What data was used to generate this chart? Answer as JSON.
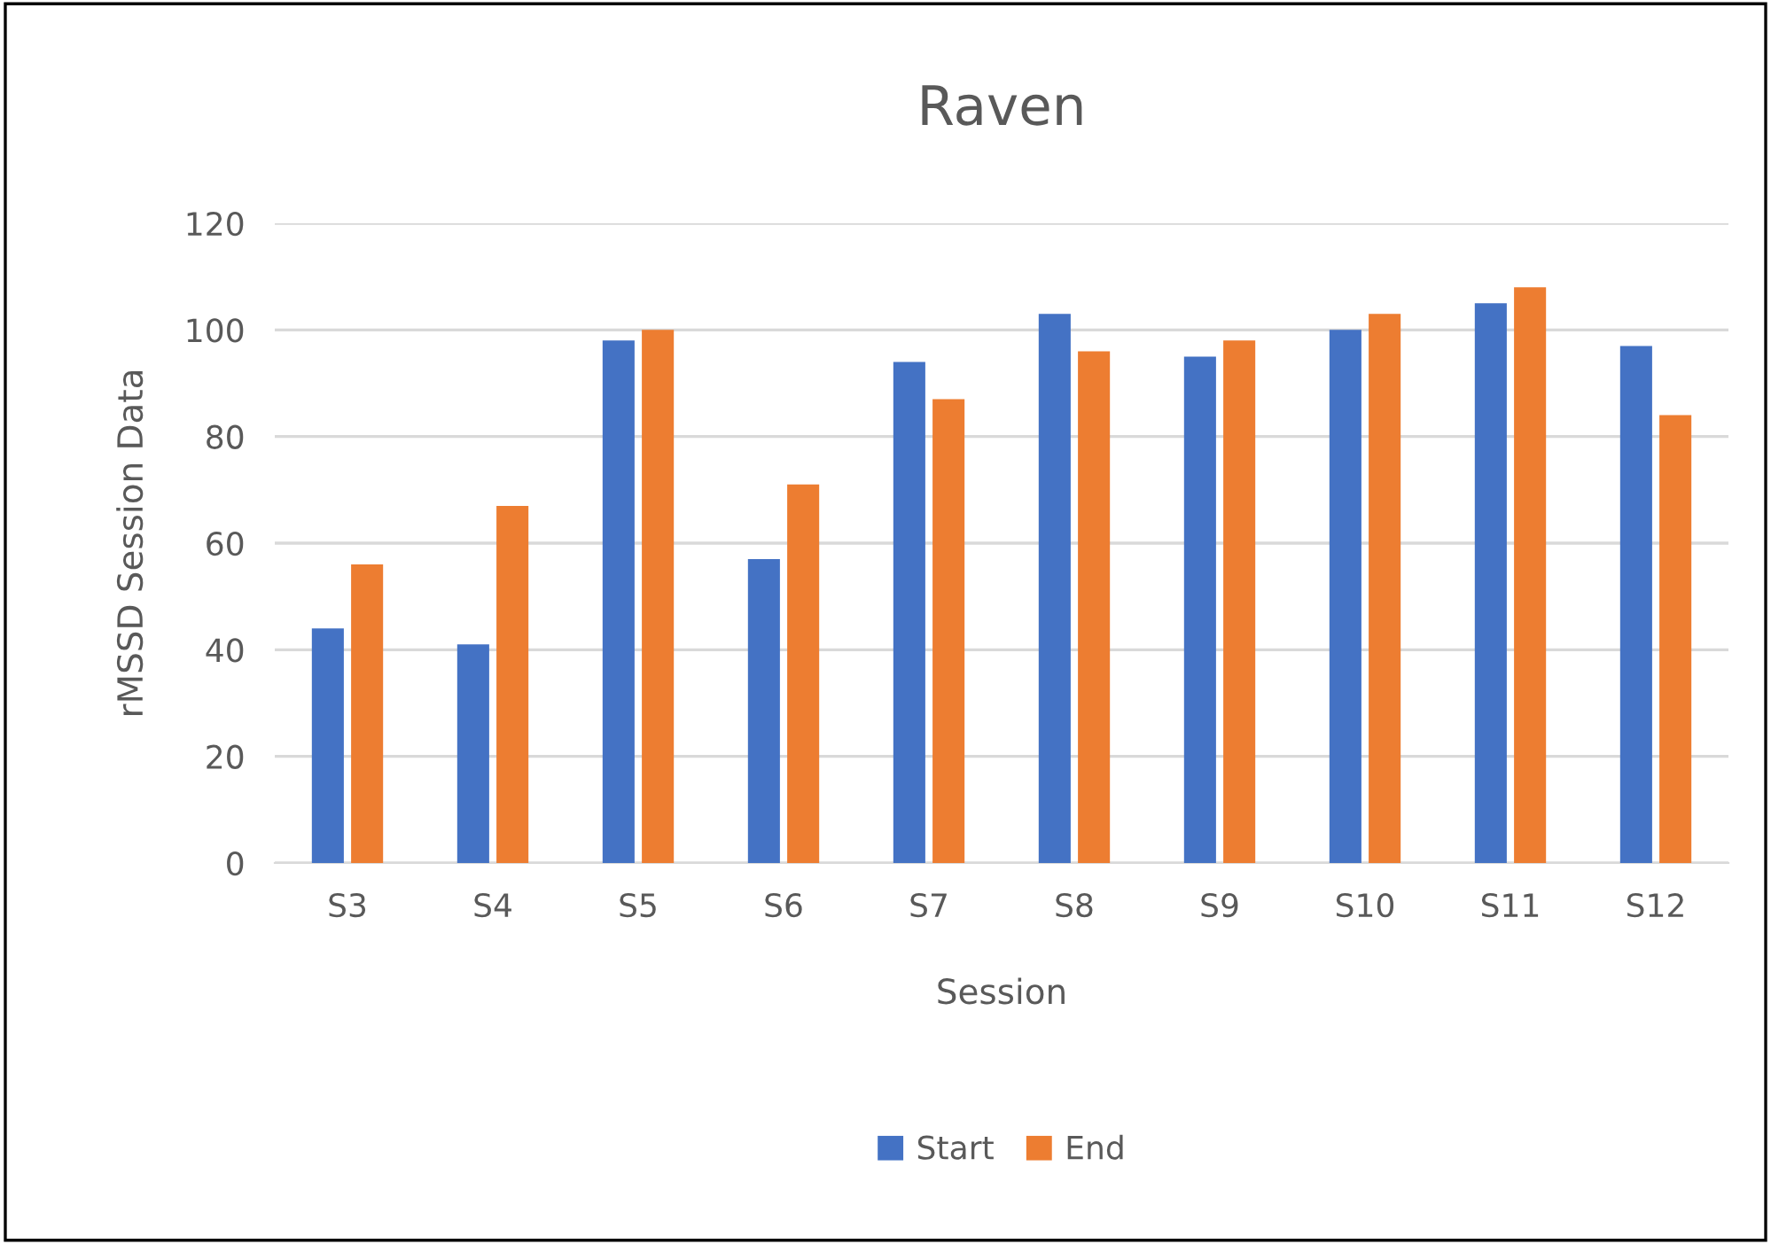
{
  "chart_data": {
    "type": "bar",
    "title": "Raven",
    "xlabel": "Session",
    "ylabel": "rMSSD Session Data",
    "categories": [
      "S3",
      "S4",
      "S5",
      "S6",
      "S7",
      "S8",
      "S9",
      "S10",
      "S11",
      "S12"
    ],
    "series": [
      {
        "name": "Start",
        "color": "#4472c4",
        "values": [
          44,
          41,
          98,
          57,
          94,
          103,
          95,
          100,
          105,
          97
        ]
      },
      {
        "name": "End",
        "color": "#ed7d31",
        "values": [
          56,
          67,
          100,
          71,
          87,
          96,
          98,
          103,
          108,
          84
        ]
      }
    ],
    "ylim": [
      0,
      120
    ],
    "yticks": [
      0,
      20,
      40,
      60,
      80,
      100,
      120
    ],
    "grid": "y",
    "legend": "bottom"
  }
}
